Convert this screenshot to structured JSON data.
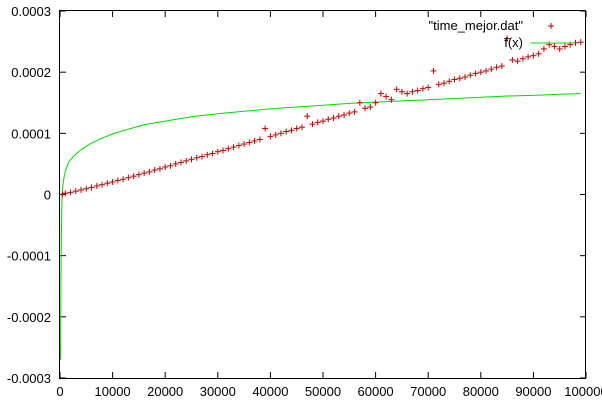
{
  "chart_data": {
    "type": "scatter",
    "title": "",
    "xlabel": "",
    "ylabel": "",
    "xlim": [
      0,
      100000
    ],
    "ylim": [
      -0.0003,
      0.0003
    ],
    "x_ticks": [
      0,
      10000,
      20000,
      30000,
      40000,
      50000,
      60000,
      70000,
      80000,
      90000,
      100000
    ],
    "x_tick_labels": [
      "0",
      "10000",
      "20000",
      "30000",
      "40000",
      "50000",
      "60000",
      "70000",
      "80000",
      "90000",
      "100000"
    ],
    "y_ticks": [
      -0.0003,
      -0.0002,
      -0.0001,
      0,
      0.0001,
      0.0002,
      0.0003
    ],
    "y_tick_labels": [
      "-0.0003",
      "-0.0002",
      "-0.0001",
      "0",
      "0.0001",
      "0.0002",
      "0.0003"
    ],
    "grid": false,
    "legend_position": "top-right",
    "series": [
      {
        "name": "\"time_mejor.dat\"",
        "kind": "points",
        "marker": "plus",
        "color": "#cc0000",
        "points": [
          [
            500,
            5e-07
          ],
          [
            1000,
            2e-06
          ],
          [
            2000,
            3.5e-06
          ],
          [
            3000,
            5.5e-06
          ],
          [
            4000,
            7.5e-06
          ],
          [
            5000,
            9.5e-06
          ],
          [
            6000,
            1.15e-05
          ],
          [
            7000,
            1.4e-05
          ],
          [
            8000,
            1.6e-05
          ],
          [
            9000,
            1.85e-05
          ],
          [
            10000,
            2.05e-05
          ],
          [
            11000,
            2.3e-05
          ],
          [
            12000,
            2.5e-05
          ],
          [
            13000,
            2.75e-05
          ],
          [
            14000,
            3e-05
          ],
          [
            15000,
            3.25e-05
          ],
          [
            16000,
            3.5e-05
          ],
          [
            17000,
            3.7e-05
          ],
          [
            18000,
            4e-05
          ],
          [
            19000,
            4.2e-05
          ],
          [
            20000,
            4.5e-05
          ],
          [
            21000,
            4.7e-05
          ],
          [
            22000,
            5e-05
          ],
          [
            23000,
            5.25e-05
          ],
          [
            24000,
            5.5e-05
          ],
          [
            25000,
            5.75e-05
          ],
          [
            26000,
            6e-05
          ],
          [
            27000,
            6.2e-05
          ],
          [
            28000,
            6.5e-05
          ],
          [
            29000,
            6.7e-05
          ],
          [
            30000,
            7e-05
          ],
          [
            31000,
            7.2e-05
          ],
          [
            32000,
            7.5e-05
          ],
          [
            33000,
            7.75e-05
          ],
          [
            34000,
            8e-05
          ],
          [
            35000,
            8.25e-05
          ],
          [
            36000,
            8.5e-05
          ],
          [
            37000,
            8.75e-05
          ],
          [
            38000,
            9e-05
          ],
          [
            39000,
            0.000108
          ],
          [
            40000,
            9.5e-05
          ],
          [
            41000,
            9.75e-05
          ],
          [
            42000,
            0.0001
          ],
          [
            43000,
            0.000103
          ],
          [
            44000,
            0.000105
          ],
          [
            45000,
            0.000108
          ],
          [
            46000,
            0.00011
          ],
          [
            47000,
            0.000128
          ],
          [
            48000,
            0.000115
          ],
          [
            49000,
            0.000118
          ],
          [
            50000,
            0.00012
          ],
          [
            51000,
            0.000123
          ],
          [
            52000,
            0.000125
          ],
          [
            53000,
            0.000128
          ],
          [
            54000,
            0.00013
          ],
          [
            55000,
            0.000133
          ],
          [
            56000,
            0.000135
          ],
          [
            57000,
            0.00015
          ],
          [
            58000,
            0.000141
          ],
          [
            59000,
            0.000143
          ],
          [
            60000,
            0.00015
          ],
          [
            61000,
            0.000165
          ],
          [
            62000,
            0.00016
          ],
          [
            63000,
            0.000155
          ],
          [
            64000,
            0.000172
          ],
          [
            65000,
            0.000168
          ],
          [
            66000,
            0.000165
          ],
          [
            67000,
            0.000168
          ],
          [
            68000,
            0.00017
          ],
          [
            69000,
            0.000173
          ],
          [
            70000,
            0.000175
          ],
          [
            71000,
            0.000202
          ],
          [
            72000,
            0.00018
          ],
          [
            73000,
            0.000182
          ],
          [
            74000,
            0.000185
          ],
          [
            75000,
            0.000188
          ],
          [
            76000,
            0.00019
          ],
          [
            77000,
            0.000192
          ],
          [
            78000,
            0.000195
          ],
          [
            79000,
            0.000198
          ],
          [
            80000,
            0.0002
          ],
          [
            81000,
            0.000202
          ],
          [
            82000,
            0.000205
          ],
          [
            83000,
            0.000208
          ],
          [
            84000,
            0.00021
          ],
          [
            85000,
            0.000255
          ],
          [
            86000,
            0.00022
          ],
          [
            87000,
            0.000218
          ],
          [
            88000,
            0.000222
          ],
          [
            89000,
            0.000225
          ],
          [
            90000,
            0.000227
          ],
          [
            91000,
            0.00023
          ],
          [
            92000,
            0.000238
          ],
          [
            93000,
            0.000245
          ],
          [
            94000,
            0.000242
          ],
          [
            95000,
            0.000238
          ],
          [
            96000,
            0.000242
          ],
          [
            97000,
            0.000245
          ],
          [
            98000,
            0.000248
          ],
          [
            99000,
            0.000249
          ]
        ]
      },
      {
        "name": "f(x)",
        "kind": "line",
        "color": "#00dd00",
        "points": [
          [
            100,
            -0.00027
          ],
          [
            200,
            -0.00011
          ],
          [
            300,
            -4e-05
          ],
          [
            400,
            0.0
          ],
          [
            500,
            1e-05
          ],
          [
            700,
            2.5e-05
          ],
          [
            1000,
            3.8e-05
          ],
          [
            1500,
            5e-05
          ],
          [
            2000,
            5.7e-05
          ],
          [
            3000,
            6.6e-05
          ],
          [
            4000,
            7.3e-05
          ],
          [
            5000,
            7.9e-05
          ],
          [
            6000,
            8.4e-05
          ],
          [
            8000,
            9.2e-05
          ],
          [
            10000,
            9.9e-05
          ],
          [
            13000,
            0.000107
          ],
          [
            16000,
            0.000114
          ],
          [
            20000,
            0.00012
          ],
          [
            25000,
            0.000127
          ],
          [
            30000,
            0.000132
          ],
          [
            35000,
            0.000136
          ],
          [
            40000,
            0.00014
          ],
          [
            45000,
            0.000143
          ],
          [
            50000,
            0.000146
          ],
          [
            55000,
            0.000149
          ],
          [
            60000,
            0.000151
          ],
          [
            65000,
            0.000153
          ],
          [
            70000,
            0.000155
          ],
          [
            75000,
            0.000157
          ],
          [
            80000,
            0.000159
          ],
          [
            85000,
            0.000161
          ],
          [
            90000,
            0.000162
          ],
          [
            95000,
            0.000164
          ],
          [
            99000,
            0.000165
          ]
        ]
      }
    ]
  }
}
